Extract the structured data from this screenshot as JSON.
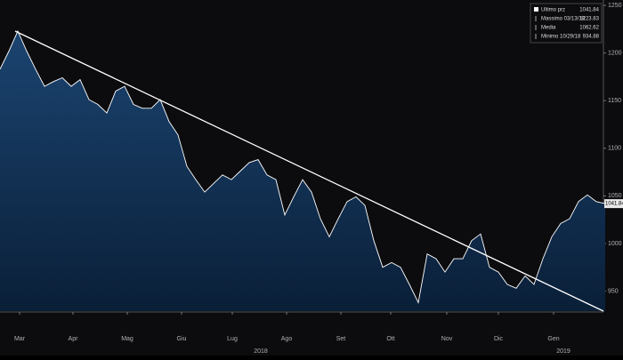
{
  "chart_data": {
    "type": "area",
    "series": [
      {
        "name": "Ultimo prz",
        "color": "#ffffff",
        "fill_top": "#1b4470",
        "fill_bottom": "#0a1f38",
        "values": [
          1183,
          1202,
          1223,
          1202,
          1183,
          1165,
          1170,
          1174,
          1165,
          1172,
          1151,
          1146,
          1137,
          1160,
          1165,
          1146,
          1142,
          1142,
          1151,
          1128,
          1114,
          1081,
          1067,
          1054,
          1063,
          1072,
          1067,
          1076,
          1085,
          1088,
          1072,
          1067,
          1030,
          1049,
          1067,
          1054,
          1026,
          1007,
          1026,
          1044,
          1049,
          1040,
          1003,
          975,
          980,
          975,
          957,
          938,
          989,
          984,
          970,
          984,
          984,
          1003,
          1010,
          975,
          970,
          957,
          953,
          966,
          957,
          984,
          1007,
          1021,
          1026,
          1044,
          1051,
          1044,
          1041.84
        ]
      }
    ],
    "xlim": [
      0,
      67.8
    ],
    "xticks": [
      {
        "value": 2.2,
        "label": "Mar"
      },
      {
        "value": 8.2,
        "label": "Apr"
      },
      {
        "value": 14.3,
        "label": "Mag"
      },
      {
        "value": 20.4,
        "label": "Giu"
      },
      {
        "value": 26.1,
        "label": "Lug"
      },
      {
        "value": 32.2,
        "label": "Ago"
      },
      {
        "value": 38.3,
        "label": "Set"
      },
      {
        "value": 43.9,
        "label": "Ott"
      },
      {
        "value": 50.2,
        "label": "Nov"
      },
      {
        "value": 56,
        "label": "Dic"
      },
      {
        "value": 62.2,
        "label": "Gen"
      }
    ],
    "year_ticks": [
      {
        "value": 29.3,
        "label": "2018"
      },
      {
        "value": 63.3,
        "label": "2019"
      }
    ],
    "ylim": [
      929,
      1251
    ],
    "yticks": [
      950,
      1000,
      1050,
      1100,
      1150,
      1200,
      1250
    ],
    "trendline": {
      "x": [
        1.7,
        67.8
      ],
      "values": [
        1223,
        929
      ],
      "color": "#ffffff"
    },
    "legend": [
      {
        "label": "Ultimo prz",
        "value": 1041.84
      },
      {
        "label": "Massimo 03/13/18",
        "value": 1223.83
      },
      {
        "label": "Media",
        "value": 1062.62
      },
      {
        "label": "Minimo 10/29/18",
        "value": 934.88
      }
    ]
  }
}
